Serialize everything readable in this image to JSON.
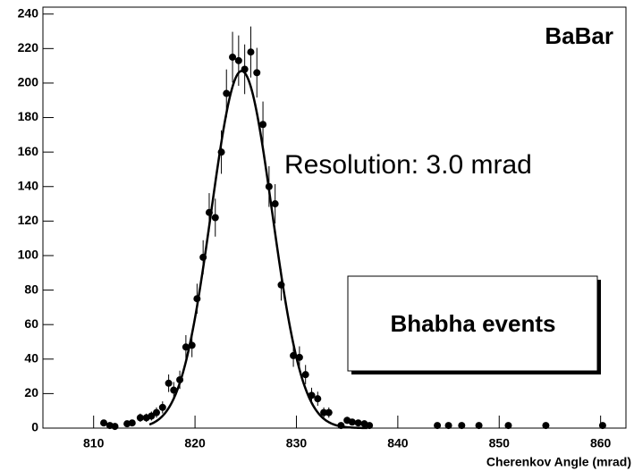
{
  "chart_data": {
    "type": "scatter",
    "x": [
      811.0,
      811.6,
      812.1,
      813.3,
      813.8,
      814.6,
      815.2,
      815.7,
      816.2,
      816.8,
      817.4,
      817.9,
      818.5,
      819.1,
      819.7,
      820.2,
      820.8,
      821.4,
      822.0,
      822.6,
      823.1,
      823.7,
      824.3,
      824.9,
      825.5,
      826.1,
      826.7,
      827.3,
      827.9,
      828.5,
      829.7,
      830.3,
      830.9,
      831.5,
      832.1,
      832.7,
      833.2,
      834.4,
      835.0,
      835.5,
      836.1,
      836.7,
      837.2,
      843.9,
      845.0,
      846.3,
      848.0,
      850.9,
      854.6,
      860.2
    ],
    "values": [
      3,
      1.5,
      1,
      2.5,
      3,
      6,
      6,
      7,
      9,
      12,
      26,
      22,
      28,
      47,
      48,
      75,
      99,
      125,
      122,
      160,
      194,
      215,
      213,
      208,
      218,
      206,
      176,
      140,
      130,
      83,
      42,
      41,
      31,
      19,
      17,
      9,
      9,
      1.5,
      4.5,
      3.5,
      3,
      2.5,
      1.5,
      1.5,
      1.5,
      1.5,
      1.5,
      1.5,
      1.5,
      1.5
    ],
    "errors": [
      1.7,
      1.2,
      1,
      1.6,
      1.7,
      2.4,
      2.4,
      2.6,
      3,
      3.5,
      5.1,
      4.7,
      5.3,
      6.9,
      6.9,
      8.7,
      9.9,
      11.2,
      11,
      12.6,
      13.9,
      14.7,
      14.6,
      14.4,
      14.8,
      14.4,
      13.3,
      11.8,
      11.4,
      9.1,
      6.5,
      6.4,
      5.6,
      4.4,
      4.1,
      3,
      3,
      1.2,
      2.1,
      1.9,
      1.7,
      1.6,
      1.2,
      1.2,
      1.2,
      1.2,
      1.2,
      1.2,
      1.2,
      1.2
    ],
    "color": "#000000",
    "fit": {
      "amplitude": 207,
      "mean": 824.6,
      "sigma": 3.0,
      "xrange": [
        815.5,
        837
      ]
    },
    "xlim": [
      805,
      862.5
    ],
    "ylim": [
      0,
      244
    ],
    "xticks": [
      810,
      820,
      830,
      840,
      850,
      860
    ],
    "yticks": [
      0,
      20,
      40,
      60,
      80,
      100,
      120,
      140,
      160,
      180,
      200,
      220,
      240
    ],
    "x_label": "Cherenkov Angle (mrad)",
    "annotations": [
      "BaBar",
      "Resolution:  3.0 mrad",
      "Bhabha events"
    ]
  }
}
